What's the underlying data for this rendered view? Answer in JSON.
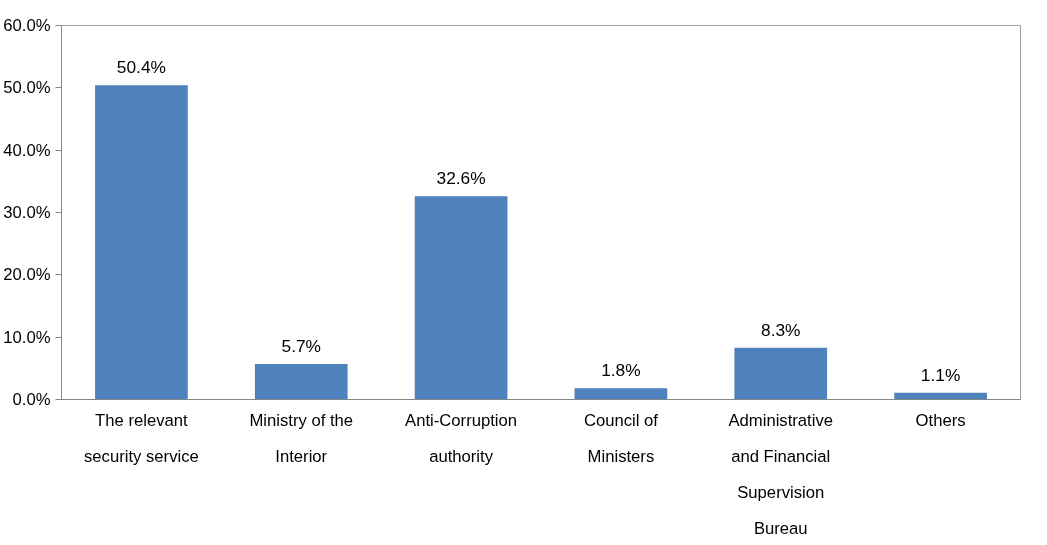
{
  "chart_data": {
    "type": "bar",
    "categories": [
      "The relevant security service",
      "Ministry of the Interior",
      "Anti-Corruption authority",
      "Council of Ministers",
      "Administrative and Financial Supervision Bureau",
      "Others"
    ],
    "values": [
      50.4,
      5.7,
      32.6,
      1.8,
      8.3,
      1.1
    ],
    "value_labels": [
      "50.4%",
      "5.7%",
      "32.6%",
      "1.8%",
      "8.3%",
      "1.1%"
    ],
    "color": "#4f81bd",
    "ylim": [
      0,
      60
    ],
    "yticks": [
      {
        "value": 0,
        "label": "0.0%"
      },
      {
        "value": 10,
        "label": "10.0%"
      },
      {
        "value": 20,
        "label": "20.0%"
      },
      {
        "value": 30,
        "label": "30.0%"
      },
      {
        "value": 40,
        "label": "40.0%"
      },
      {
        "value": 50,
        "label": "50.0%"
      },
      {
        "value": 60,
        "label": "60.0%"
      }
    ],
    "grid": false
  }
}
